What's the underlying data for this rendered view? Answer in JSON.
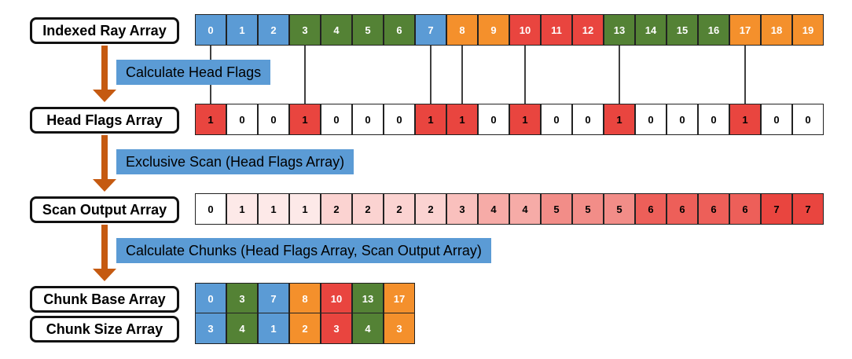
{
  "labels": {
    "indexed": "Indexed Ray Array",
    "head_flags": "Head Flags Array",
    "scan_output": "Scan Output Array",
    "chunk_base": "Chunk Base Array",
    "chunk_size": "Chunk Size Array"
  },
  "steps": {
    "calc_head_flags": "Calculate Head Flags",
    "exclusive_scan": "Exclusive Scan (Head Flags Array)",
    "calc_chunks": "Calculate Chunks (Head Flags Array, Scan Output Array)"
  },
  "colors": {
    "blue": "#5b9bd5",
    "green": "#548235",
    "orange": "#f4902c",
    "red": "#e9453f",
    "white": "#ffffff",
    "arrow": "#c55a11"
  },
  "indexed_ray_array": {
    "values": [
      "0",
      "1",
      "2",
      "3",
      "4",
      "5",
      "6",
      "7",
      "8",
      "9",
      "10",
      "11",
      "12",
      "13",
      "14",
      "15",
      "16",
      "17",
      "18",
      "19"
    ],
    "colors": [
      "blue",
      "blue",
      "blue",
      "green",
      "green",
      "green",
      "green",
      "blue",
      "orange",
      "orange",
      "red",
      "red",
      "red",
      "green",
      "green",
      "green",
      "green",
      "orange",
      "orange",
      "orange"
    ]
  },
  "head_flags_array": {
    "values": [
      "1",
      "0",
      "0",
      "1",
      "0",
      "0",
      "0",
      "1",
      "1",
      "0",
      "1",
      "0",
      "0",
      "1",
      "0",
      "0",
      "0",
      "1",
      "0",
      "0"
    ]
  },
  "scan_output_array": {
    "values": [
      "0",
      "1",
      "1",
      "1",
      "2",
      "2",
      "2",
      "2",
      "3",
      "4",
      "4",
      "5",
      "5",
      "5",
      "6",
      "6",
      "6",
      "6",
      "7",
      "7"
    ],
    "fills": [
      "#ffffff",
      "#fde9e8",
      "#fde9e8",
      "#fde9e8",
      "#fbd3d1",
      "#fbd3d1",
      "#fbd3d1",
      "#fbd3d1",
      "#f9c0bd",
      "#f6aba7",
      "#f6aba7",
      "#f28d88",
      "#f28d88",
      "#f28d88",
      "#ed5f59",
      "#ed5f59",
      "#ed5f59",
      "#ed5f59",
      "#e9453f",
      "#e9453f"
    ]
  },
  "chunk_base_array": {
    "values": [
      "0",
      "3",
      "7",
      "8",
      "10",
      "13",
      "17"
    ],
    "colors": [
      "blue",
      "green",
      "blue",
      "orange",
      "red",
      "green",
      "orange"
    ]
  },
  "chunk_size_array": {
    "values": [
      "3",
      "4",
      "1",
      "2",
      "3",
      "4",
      "3"
    ],
    "colors": [
      "blue",
      "green",
      "blue",
      "orange",
      "red",
      "green",
      "orange"
    ]
  }
}
